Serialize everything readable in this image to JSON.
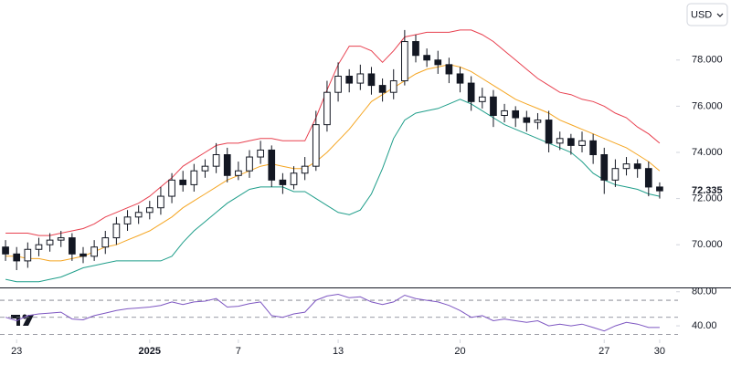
{
  "currency": "USD",
  "chart_data": [
    {
      "type": "candlestick",
      "xlim": [
        -0.5,
        59.5
      ],
      "xticks": [
        {
          "value": 1,
          "label": "23"
        },
        {
          "value": 13,
          "label": "2025"
        },
        {
          "value": 21,
          "label": "7"
        },
        {
          "value": 30,
          "label": "13"
        },
        {
          "value": 41,
          "label": "20"
        },
        {
          "value": 54,
          "label": "27"
        },
        {
          "value": 59,
          "label": "30"
        }
      ],
      "ylim": [
        68.15,
        80.6
      ],
      "yticks": [
        {
          "value": 70,
          "label": "70.000"
        },
        {
          "value": 72,
          "label": "72.000"
        },
        {
          "value": 74,
          "label": "74.000"
        },
        {
          "value": 76,
          "label": "76.000"
        },
        {
          "value": 78,
          "label": "78.000"
        }
      ],
      "up_color": "#ffffff",
      "down_color": "#131722",
      "wick_color": "#131722",
      "open": [
        69.9,
        69.6,
        69.3,
        69.8,
        70.0,
        70.2,
        70.3,
        69.6,
        69.5,
        69.9,
        70.3,
        70.9,
        71.2,
        71.4,
        71.6,
        72.1,
        72.8,
        72.6,
        73.2,
        73.4,
        73.9,
        73.0,
        73.2,
        73.8,
        74.1,
        72.8,
        72.6,
        73.1,
        73.4,
        75.2,
        76.6,
        77.3,
        77.0,
        77.4,
        76.9,
        76.6,
        77.1,
        78.8,
        78.2,
        78.0,
        77.8,
        77.4,
        77.0,
        76.2,
        76.4,
        75.6,
        75.8,
        75.5,
        75.3,
        75.4,
        74.4,
        74.6,
        74.3,
        74.5,
        73.9,
        72.8,
        73.3,
        73.5,
        73.3,
        72.5
      ],
      "high": [
        70.2,
        69.9,
        70.1,
        70.3,
        70.5,
        70.6,
        70.5,
        69.9,
        70.2,
        70.6,
        71.2,
        71.5,
        71.7,
        71.9,
        72.5,
        73.1,
        73.2,
        73.5,
        73.7,
        74.4,
        74.2,
        73.6,
        74.1,
        74.5,
        74.3,
        73.1,
        73.4,
        73.8,
        75.8,
        77.1,
        77.9,
        77.6,
        77.8,
        77.7,
        77.2,
        77.6,
        79.3,
        79.1,
        78.5,
        78.4,
        78.1,
        77.7,
        77.3,
        76.8,
        76.7,
        76.1,
        76.0,
        75.8,
        75.7,
        75.8,
        74.9,
        74.8,
        74.9,
        74.8,
        74.2,
        73.7,
        73.8,
        73.7,
        73.6,
        72.7
      ],
      "low": [
        69.3,
        68.9,
        69.0,
        69.5,
        69.7,
        69.9,
        69.3,
        69.2,
        69.3,
        69.6,
        70.0,
        70.6,
        70.9,
        71.1,
        71.3,
        71.8,
        72.3,
        72.3,
        72.9,
        73.1,
        72.7,
        72.8,
        72.9,
        73.5,
        72.5,
        72.2,
        72.4,
        72.8,
        73.2,
        74.9,
        76.2,
        76.6,
        76.7,
        76.5,
        76.2,
        76.3,
        76.9,
        77.9,
        77.7,
        77.4,
        77.0,
        76.6,
        75.8,
        75.9,
        75.1,
        75.3,
        75.1,
        74.9,
        75.0,
        74.0,
        74.1,
        73.9,
        74.0,
        73.5,
        72.2,
        72.5,
        73.0,
        72.9,
        72.1,
        72.0
      ],
      "close": [
        69.6,
        69.3,
        69.8,
        70.0,
        70.2,
        70.3,
        69.6,
        69.5,
        69.9,
        70.3,
        70.9,
        71.2,
        71.4,
        71.6,
        72.1,
        72.8,
        72.6,
        73.2,
        73.4,
        73.9,
        73.0,
        73.2,
        73.8,
        74.1,
        72.8,
        72.6,
        73.1,
        73.4,
        75.2,
        76.6,
        77.3,
        77.0,
        77.4,
        76.9,
        76.6,
        77.1,
        78.8,
        78.2,
        78.0,
        77.8,
        77.4,
        77.0,
        76.2,
        76.4,
        75.6,
        75.8,
        75.5,
        75.3,
        75.4,
        74.4,
        74.6,
        74.3,
        74.5,
        73.9,
        72.8,
        73.3,
        73.5,
        73.3,
        72.5,
        72.335
      ],
      "series": [
        {
          "color": "#e8404f",
          "values": [
            70.5,
            70.5,
            70.5,
            70.4,
            70.4,
            70.5,
            70.6,
            70.7,
            70.9,
            71.2,
            71.4,
            71.6,
            71.8,
            72.1,
            72.5,
            72.9,
            73.4,
            73.7,
            74.0,
            74.3,
            74.4,
            74.4,
            74.5,
            74.6,
            74.6,
            74.5,
            74.5,
            74.5,
            75.5,
            76.7,
            77.8,
            78.6,
            78.6,
            78.4,
            77.9,
            78.4,
            79.0,
            79.1,
            79.2,
            79.2,
            79.2,
            79.3,
            79.3,
            79.1,
            78.8,
            78.4,
            78.0,
            77.6,
            77.2,
            76.9,
            76.6,
            76.5,
            76.3,
            76.2,
            76.0,
            75.7,
            75.5,
            75.1,
            74.8,
            74.4
          ]
        },
        {
          "color": "#f5a623",
          "values": [
            69.5,
            69.5,
            69.4,
            69.4,
            69.3,
            69.3,
            69.4,
            69.5,
            69.7,
            69.9,
            70.0,
            70.2,
            70.4,
            70.6,
            70.9,
            71.2,
            71.6,
            71.9,
            72.2,
            72.5,
            72.8,
            73.0,
            73.2,
            73.4,
            73.5,
            73.4,
            73.3,
            73.3,
            73.6,
            74.0,
            74.5,
            75.0,
            75.6,
            76.2,
            76.5,
            76.8,
            77.1,
            77.4,
            77.6,
            77.7,
            77.8,
            77.7,
            77.5,
            77.2,
            76.9,
            76.6,
            76.3,
            76.1,
            75.9,
            75.7,
            75.4,
            75.2,
            75.0,
            74.8,
            74.6,
            74.4,
            74.2,
            73.9,
            73.6,
            73.2
          ]
        },
        {
          "color": "#1f9e8a",
          "values": [
            68.5,
            68.4,
            68.4,
            68.4,
            68.5,
            68.6,
            68.8,
            69.0,
            69.1,
            69.2,
            69.3,
            69.3,
            69.3,
            69.3,
            69.3,
            69.5,
            70.1,
            70.6,
            71.0,
            71.4,
            71.8,
            72.1,
            72.4,
            72.5,
            72.5,
            72.5,
            72.3,
            72.3,
            72.0,
            71.7,
            71.4,
            71.3,
            71.5,
            72.2,
            73.3,
            74.6,
            75.4,
            75.7,
            75.8,
            75.9,
            76.1,
            76.3,
            76.1,
            75.8,
            75.5,
            75.2,
            75.0,
            74.8,
            74.6,
            74.4,
            74.2,
            74.0,
            73.6,
            73.1,
            72.8,
            72.6,
            72.5,
            72.4,
            72.2,
            72.1
          ]
        }
      ]
    },
    {
      "type": "line",
      "xlim": [
        -0.5,
        59.5
      ],
      "ylim": [
        24,
        84
      ],
      "yticks": [
        {
          "value": 80,
          "label": "80.00"
        },
        {
          "value": 40,
          "label": "40.00"
        }
      ],
      "levels": [
        70,
        50,
        30
      ],
      "series": [
        {
          "color": "#7e57c2",
          "values": [
            50,
            46,
            52,
            54,
            55,
            56,
            48,
            47,
            52,
            55,
            58,
            60,
            61,
            62,
            64,
            68,
            65,
            68,
            69,
            72,
            62,
            63,
            66,
            68,
            52,
            50,
            54,
            56,
            70,
            75,
            77,
            73,
            74,
            68,
            65,
            68,
            76,
            72,
            70,
            68,
            64,
            58,
            50,
            52,
            46,
            48,
            46,
            44,
            46,
            40,
            42,
            40,
            42,
            38,
            34,
            40,
            44,
            42,
            38,
            38
          ]
        }
      ]
    }
  ]
}
